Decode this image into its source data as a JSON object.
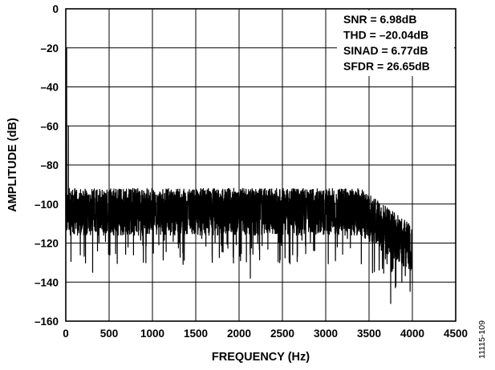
{
  "chart_data": {
    "type": "line",
    "xlabel": "FREQUENCY (Hz)",
    "ylabel": "AMPLITUDE (dB)",
    "xlim": [
      0,
      4500
    ],
    "ylim": [
      -160,
      0
    ],
    "x_ticks": [
      0,
      500,
      1000,
      1500,
      2000,
      2500,
      3000,
      3500,
      4000,
      4500
    ],
    "y_ticks": [
      0,
      -20,
      -40,
      -60,
      -80,
      -100,
      -120,
      -140,
      -160
    ],
    "x_tick_labels": [
      "0",
      "500",
      "1000",
      "1500",
      "2000",
      "2500",
      "3000",
      "3500",
      "4000",
      "4500"
    ],
    "y_tick_labels": [
      "0",
      "–20",
      "–40",
      "–60",
      "–80",
      "–100",
      "–120",
      "–140",
      "–160"
    ],
    "grid": true,
    "line_color": "#000000",
    "annotations": [
      "SNR = 6.98dB",
      "THD = –20.04dB",
      "SINAD = 6.77dB",
      "SFDR = 26.65dB"
    ],
    "annotation_placement": "top-right",
    "peaks": [
      {
        "x": 10,
        "y": -20
      },
      {
        "x": 30,
        "y": -60
      }
    ],
    "noise_floor": {
      "x_range": [
        0,
        4000
      ],
      "mean_level_low_freq": -103,
      "spread_low_freq": [
        -118,
        -93
      ],
      "rolloff_start": 3400,
      "mean_level_at_4000": -122,
      "min_spikes": [
        {
          "x": 310,
          "y": -135
        },
        {
          "x": 2130,
          "y": -138
        },
        {
          "x": 3750,
          "y": -151
        },
        {
          "x": 3810,
          "y": -142
        }
      ]
    },
    "figure_id": "11115-109"
  }
}
